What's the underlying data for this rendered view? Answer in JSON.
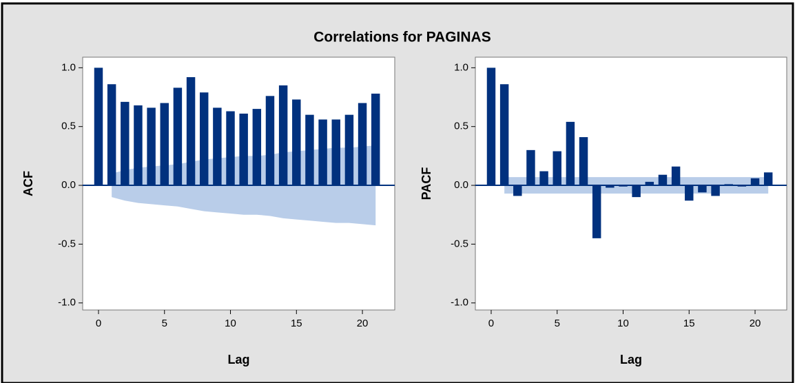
{
  "title": "Correlations for PAGINAS",
  "chart_data": [
    {
      "type": "bar",
      "ylabel": "ACF",
      "xlabel": "Lag",
      "color": "#01317e",
      "band_color": "#b9cde9",
      "x": [
        0,
        1,
        2,
        3,
        4,
        5,
        6,
        7,
        8,
        9,
        10,
        11,
        12,
        13,
        14,
        15,
        16,
        17,
        18,
        19,
        20,
        21
      ],
      "values": [
        1.0,
        0.86,
        0.71,
        0.68,
        0.66,
        0.7,
        0.83,
        0.92,
        0.79,
        0.66,
        0.63,
        0.61,
        0.65,
        0.76,
        0.85,
        0.73,
        0.6,
        0.56,
        0.56,
        0.6,
        0.7,
        0.78
      ],
      "band_upper": [
        null,
        0.1,
        0.13,
        0.15,
        0.16,
        0.17,
        0.18,
        0.2,
        0.22,
        0.23,
        0.24,
        0.25,
        0.25,
        0.26,
        0.28,
        0.29,
        0.3,
        0.31,
        0.32,
        0.32,
        0.33,
        0.34
      ],
      "band_lower": [
        null,
        -0.1,
        -0.13,
        -0.15,
        -0.16,
        -0.17,
        -0.18,
        -0.2,
        -0.22,
        -0.23,
        -0.24,
        -0.25,
        -0.25,
        -0.26,
        -0.28,
        -0.29,
        -0.3,
        -0.31,
        -0.32,
        -0.32,
        -0.33,
        -0.34
      ],
      "xlim": [
        -1.2,
        22.45
      ],
      "xticks": [
        0,
        5,
        10,
        15,
        20
      ],
      "ylim": [
        -1.06,
        1.09
      ],
      "yticks": [
        {
          "value": -1,
          "label": "-1.0"
        },
        {
          "value": -0.5,
          "label": "-0.5"
        },
        {
          "value": 0,
          "label": "0.0"
        },
        {
          "value": 0.5,
          "label": "0.5"
        },
        {
          "value": 1,
          "label": "1.0"
        }
      ]
    },
    {
      "type": "bar",
      "ylabel": "PACF",
      "xlabel": "Lag",
      "color": "#01317e",
      "band_color": "#b9cde9",
      "x": [
        0,
        1,
        2,
        3,
        4,
        5,
        6,
        7,
        8,
        9,
        10,
        11,
        12,
        13,
        14,
        15,
        16,
        17,
        18,
        19,
        20,
        21
      ],
      "values": [
        1.0,
        0.86,
        -0.09,
        0.3,
        0.12,
        0.29,
        0.54,
        0.41,
        -0.45,
        -0.02,
        -0.01,
        -0.1,
        0.03,
        0.09,
        0.16,
        -0.13,
        -0.06,
        -0.09,
        0.01,
        -0.01,
        0.06,
        0.11
      ],
      "band_upper": [
        null,
        0.07,
        0.07,
        0.07,
        0.07,
        0.07,
        0.07,
        0.07,
        0.07,
        0.07,
        0.07,
        0.07,
        0.07,
        0.07,
        0.07,
        0.07,
        0.07,
        0.07,
        0.07,
        0.07,
        0.07,
        0.07
      ],
      "band_lower": [
        null,
        -0.07,
        -0.07,
        -0.07,
        -0.07,
        -0.07,
        -0.07,
        -0.07,
        -0.07,
        -0.07,
        -0.07,
        -0.07,
        -0.07,
        -0.07,
        -0.07,
        -0.07,
        -0.07,
        -0.07,
        -0.07,
        -0.07,
        -0.07,
        -0.07
      ],
      "xlim": [
        -1.2,
        22.4
      ],
      "xticks": [
        0,
        5,
        10,
        15,
        20
      ],
      "ylim": [
        -1.06,
        1.09
      ],
      "yticks": [
        {
          "value": -1,
          "label": "-1.0"
        },
        {
          "value": -0.5,
          "label": "-0.5"
        },
        {
          "value": 0,
          "label": "0.0"
        },
        {
          "value": 0.5,
          "label": "0.5"
        },
        {
          "value": 1,
          "label": "1.0"
        }
      ]
    }
  ]
}
